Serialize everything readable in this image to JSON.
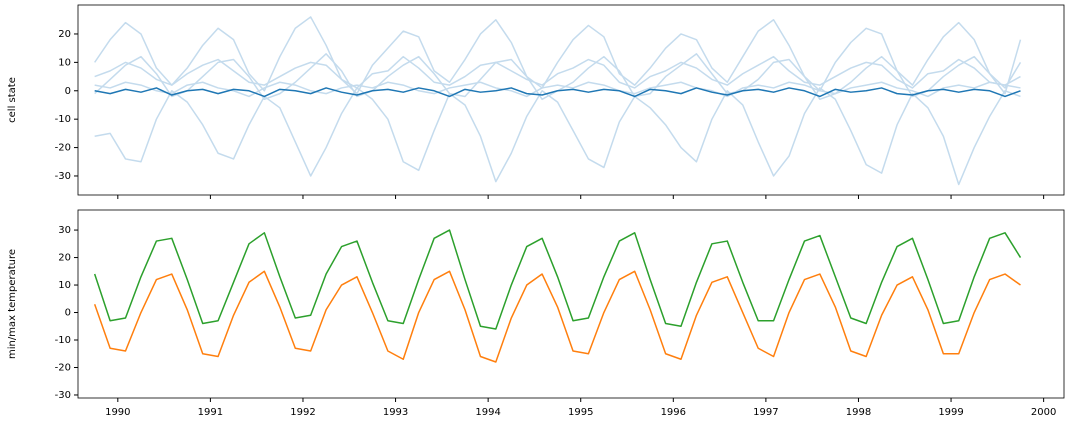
{
  "chart_data": [
    {
      "type": "line",
      "ylabel": "cell state",
      "x": [
        1989.75,
        1989.917,
        1990.083,
        1990.25,
        1990.417,
        1990.583,
        1990.75,
        1990.917,
        1991.083,
        1991.25,
        1991.417,
        1991.583,
        1991.75,
        1991.917,
        1992.083,
        1992.25,
        1992.417,
        1992.583,
        1992.75,
        1992.917,
        1993.083,
        1993.25,
        1993.417,
        1993.583,
        1993.75,
        1993.917,
        1994.083,
        1994.25,
        1994.417,
        1994.583,
        1994.75,
        1994.917,
        1995.083,
        1995.25,
        1995.417,
        1995.583,
        1995.75,
        1995.917,
        1996.083,
        1996.25,
        1996.417,
        1996.583,
        1996.75,
        1996.917,
        1997.083,
        1997.25,
        1997.417,
        1997.583,
        1997.75,
        1997.917,
        1998.083,
        1998.25,
        1998.417,
        1998.583,
        1998.75,
        1998.917,
        1999.083,
        1999.25,
        1999.417,
        1999.583,
        1999.75
      ],
      "series": [
        {
          "color": "#c4dbed",
          "values": [
            10,
            18,
            24,
            20,
            8,
            2,
            8,
            16,
            22,
            18,
            6,
            0,
            12,
            22,
            26,
            16,
            4,
            -1,
            9,
            15,
            21,
            19,
            7,
            3,
            11,
            20,
            25,
            17,
            5,
            1,
            10,
            18,
            23,
            19,
            6,
            2,
            8,
            15,
            20,
            18,
            8,
            3,
            12,
            21,
            25,
            16,
            5,
            0,
            10,
            17,
            22,
            20,
            7,
            2,
            11,
            19,
            24,
            18,
            6,
            1,
            10
          ]
        },
        {
          "color": "#c4dbed",
          "values": [
            -16,
            -15,
            -24,
            -25,
            -10,
            0,
            -4,
            -12,
            -22,
            -24,
            -12,
            -2,
            -6,
            -18,
            -30,
            -20,
            -8,
            1,
            -3,
            -10,
            -25,
            -28,
            -14,
            -1,
            -5,
            -16,
            -32,
            -22,
            -9,
            0,
            -4,
            -14,
            -24,
            -27,
            -11,
            -2,
            -6,
            -12,
            -20,
            -25,
            -10,
            0,
            -5,
            -18,
            -30,
            -23,
            -8,
            1,
            -3,
            -14,
            -26,
            -29,
            -12,
            -1,
            -6,
            -16,
            -33,
            -20,
            -9,
            0,
            -2
          ]
        },
        {
          "color": "#c4dbed",
          "values": [
            5,
            7,
            10,
            8,
            4,
            2,
            6,
            9,
            11,
            7,
            3,
            2,
            5,
            8,
            10,
            9,
            4,
            1,
            6,
            7,
            12,
            8,
            3,
            2,
            5,
            9,
            10,
            7,
            4,
            2,
            6,
            8,
            11,
            9,
            3,
            1,
            5,
            7,
            10,
            8,
            4,
            2,
            6,
            9,
            12,
            7,
            3,
            2,
            5,
            8,
            10,
            9,
            4,
            1,
            6,
            7,
            11,
            8,
            3,
            2,
            5
          ]
        },
        {
          "color": "#c4dbed",
          "values": [
            -1,
            4,
            9,
            12,
            6,
            -2,
            0,
            5,
            10,
            11,
            5,
            -3,
            -1,
            3,
            8,
            13,
            7,
            -2,
            0,
            5,
            9,
            12,
            6,
            -1,
            -2,
            4,
            10,
            11,
            5,
            -3,
            0,
            3,
            8,
            12,
            7,
            -2,
            -1,
            5,
            9,
            13,
            6,
            -1,
            0,
            4,
            10,
            11,
            5,
            -3,
            -1,
            3,
            8,
            12,
            7,
            -2,
            0,
            5,
            9,
            12,
            6,
            -1,
            18
          ]
        },
        {
          "color": "#c4dbed",
          "values": [
            2,
            1,
            3,
            2,
            0,
            -1,
            2,
            3,
            1,
            0,
            -2,
            1,
            3,
            2,
            0,
            -1,
            1,
            2,
            1,
            3,
            2,
            0,
            -1,
            1,
            2,
            3,
            1,
            0,
            -2,
            1,
            2,
            1,
            3,
            2,
            0,
            -1,
            1,
            2,
            3,
            1,
            0,
            -2,
            1,
            2,
            1,
            3,
            2,
            0,
            -1,
            1,
            2,
            3,
            1,
            0,
            -2,
            1,
            2,
            1,
            3,
            2,
            1
          ]
        },
        {
          "color": "#1f77b4",
          "values": [
            0,
            -1,
            0.5,
            -0.5,
            1,
            -1.5,
            0,
            0.5,
            -1,
            0.5,
            0,
            -2,
            0.5,
            0,
            -1,
            1,
            -0.5,
            -1.5,
            0,
            0.5,
            -0.5,
            1,
            0,
            -2,
            0.5,
            -0.5,
            0,
            1,
            -1,
            -1.5,
            0,
            0.5,
            -0.5,
            0.5,
            0,
            -2,
            0.5,
            0,
            -1,
            1,
            -0.5,
            -1.5,
            0,
            0.5,
            -0.5,
            1,
            0,
            -2,
            0.5,
            -0.5,
            0,
            1,
            -1,
            -1.5,
            0,
            0.5,
            -0.5,
            0.5,
            0,
            -2,
            0
          ]
        }
      ],
      "xlim": [
        1989.57,
        2000.22
      ],
      "ylim": [
        -36.7,
        30.2
      ],
      "yticks": [
        -30,
        -20,
        -10,
        0,
        10,
        20
      ],
      "xticks": [
        1990,
        1991,
        1992,
        1993,
        1994,
        1995,
        1996,
        1997,
        1998,
        1999,
        2000
      ]
    },
    {
      "type": "line",
      "ylabel": "min/max temperature",
      "x": [
        1989.75,
        1989.917,
        1990.083,
        1990.25,
        1990.417,
        1990.583,
        1990.75,
        1990.917,
        1991.083,
        1991.25,
        1991.417,
        1991.583,
        1991.75,
        1991.917,
        1992.083,
        1992.25,
        1992.417,
        1992.583,
        1992.75,
        1992.917,
        1993.083,
        1993.25,
        1993.417,
        1993.583,
        1993.75,
        1993.917,
        1994.083,
        1994.25,
        1994.417,
        1994.583,
        1994.75,
        1994.917,
        1995.083,
        1995.25,
        1995.417,
        1995.583,
        1995.75,
        1995.917,
        1996.083,
        1996.25,
        1996.417,
        1996.583,
        1996.75,
        1996.917,
        1997.083,
        1997.25,
        1997.417,
        1997.583,
        1997.75,
        1997.917,
        1998.083,
        1998.25,
        1998.417,
        1998.583,
        1998.75,
        1998.917,
        1999.083,
        1999.25,
        1999.417,
        1999.583,
        1999.75
      ],
      "series": [
        {
          "color": "#2ca02c",
          "values": [
            14,
            -3,
            -2,
            13,
            26,
            27,
            12,
            -4,
            -3,
            11,
            25,
            29,
            13,
            -2,
            -1,
            14,
            24,
            26,
            11,
            -3,
            -4,
            12,
            27,
            30,
            12,
            -5,
            -6,
            10,
            24,
            27,
            13,
            -3,
            -2,
            13,
            26,
            29,
            12,
            -4,
            -5,
            11,
            25,
            26,
            11,
            -3,
            -3,
            12,
            26,
            28,
            13,
            -2,
            -4,
            11,
            24,
            27,
            12,
            -4,
            -3,
            13,
            27,
            29,
            20
          ]
        },
        {
          "color": "#ff7f0e",
          "values": [
            3,
            -13,
            -14,
            0,
            12,
            14,
            1,
            -15,
            -16,
            -1,
            11,
            15,
            2,
            -13,
            -14,
            1,
            10,
            13,
            0,
            -14,
            -17,
            0,
            12,
            15,
            1,
            -16,
            -18,
            -2,
            10,
            14,
            2,
            -14,
            -15,
            0,
            12,
            15,
            1,
            -15,
            -17,
            -1,
            11,
            13,
            0,
            -13,
            -16,
            0,
            12,
            14,
            2,
            -14,
            -16,
            -1,
            10,
            13,
            1,
            -15,
            -15,
            0,
            12,
            14,
            10
          ]
        }
      ],
      "xlim": [
        1989.57,
        2000.22
      ],
      "ylim": [
        -31.1,
        37.3
      ],
      "yticks": [
        -30,
        -20,
        -10,
        0,
        10,
        20,
        30
      ],
      "xticks": [
        1990,
        1991,
        1992,
        1993,
        1994,
        1995,
        1996,
        1997,
        1998,
        1999,
        2000
      ]
    }
  ]
}
